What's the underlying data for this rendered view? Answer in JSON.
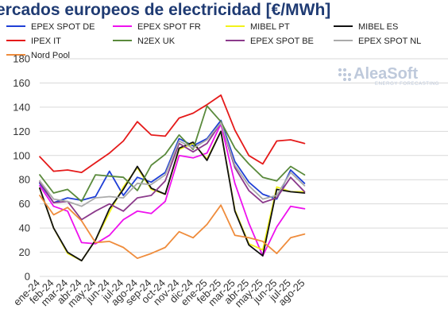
{
  "chart_data": {
    "type": "line",
    "title": "ercados europeos de electricidad [€/MWh]",
    "ylim": [
      0,
      180
    ],
    "yticks": [
      0,
      20,
      40,
      60,
      80,
      100,
      120,
      140,
      160,
      180
    ],
    "grid": true,
    "legend_position": "top",
    "categories": [
      "ene-24",
      "feb-24",
      "mar-24",
      "abr-24",
      "may-24",
      "jun-24",
      "jul-24",
      "ago-24",
      "sep-24",
      "oct-24",
      "nov-24",
      "dic-24",
      "ene-25",
      "feb-25",
      "mar-25",
      "abr-25",
      "may-25",
      "jun-25",
      "jul-25",
      "ago-25"
    ],
    "series": [
      {
        "name": "EPEX SPOT DE",
        "color": "#1f3fd6",
        "values": [
          77,
          61,
          65,
          63,
          66,
          87,
          67,
          82,
          78,
          86,
          114,
          108,
          114,
          129,
          95,
          78,
          68,
          64,
          88,
          77
        ]
      },
      {
        "name": "EPEX SPOT FR",
        "color": "#ee11ee",
        "values": [
          75,
          58,
          54,
          28,
          27,
          34,
          47,
          54,
          52,
          62,
          100,
          98,
          102,
          126,
          77,
          44,
          17,
          41,
          58,
          56
        ]
      },
      {
        "name": "MIBEL PT",
        "color": "#f2f21a",
        "values": [
          73,
          40,
          19,
          13,
          30,
          53,
          74,
          90,
          72,
          68,
          105,
          110,
          97,
          120,
          55,
          27,
          22,
          74,
          70,
          70
        ]
      },
      {
        "name": "MIBEL ES",
        "color": "#111111",
        "values": [
          73,
          40,
          20,
          13,
          30,
          56,
          72,
          91,
          73,
          68,
          106,
          111,
          96,
          120,
          54,
          26,
          17,
          72,
          70,
          69
        ]
      },
      {
        "name": "IPEX IT",
        "color": "#e51a1a",
        "values": [
          99,
          87,
          88,
          86,
          94,
          102,
          112,
          128,
          117,
          116,
          131,
          135,
          142,
          150,
          121,
          100,
          93,
          112,
          113,
          110
        ]
      },
      {
        "name": "N2EX UK",
        "color": "#5a8a3c",
        "values": [
          84,
          69,
          72,
          62,
          84,
          83,
          82,
          71,
          92,
          101,
          117,
          105,
          141,
          128,
          106,
          93,
          82,
          79,
          91,
          84
        ]
      },
      {
        "name": "EPEX SPOT BE",
        "color": "#8b3a8b",
        "values": [
          78,
          61,
          62,
          47,
          54,
          60,
          54,
          65,
          67,
          79,
          110,
          103,
          110,
          127,
          90,
          71,
          61,
          65,
          82,
          70
        ]
      },
      {
        "name": "EPEX SPOT NL",
        "color": "#aaaaaa",
        "values": [
          79,
          64,
          62,
          58,
          65,
          66,
          65,
          77,
          76,
          84,
          112,
          106,
          113,
          127,
          92,
          75,
          64,
          67,
          86,
          75
        ]
      },
      {
        "name": "Nord Pool",
        "color": "#ef8c3c",
        "values": [
          67,
          51,
          57,
          46,
          28,
          29,
          24,
          15,
          19,
          24,
          37,
          32,
          43,
          59,
          34,
          32,
          29,
          19,
          32,
          35
        ]
      }
    ]
  },
  "logo": {
    "main": "AleaSoft",
    "sub": "ENERGY FORECASTING"
  }
}
